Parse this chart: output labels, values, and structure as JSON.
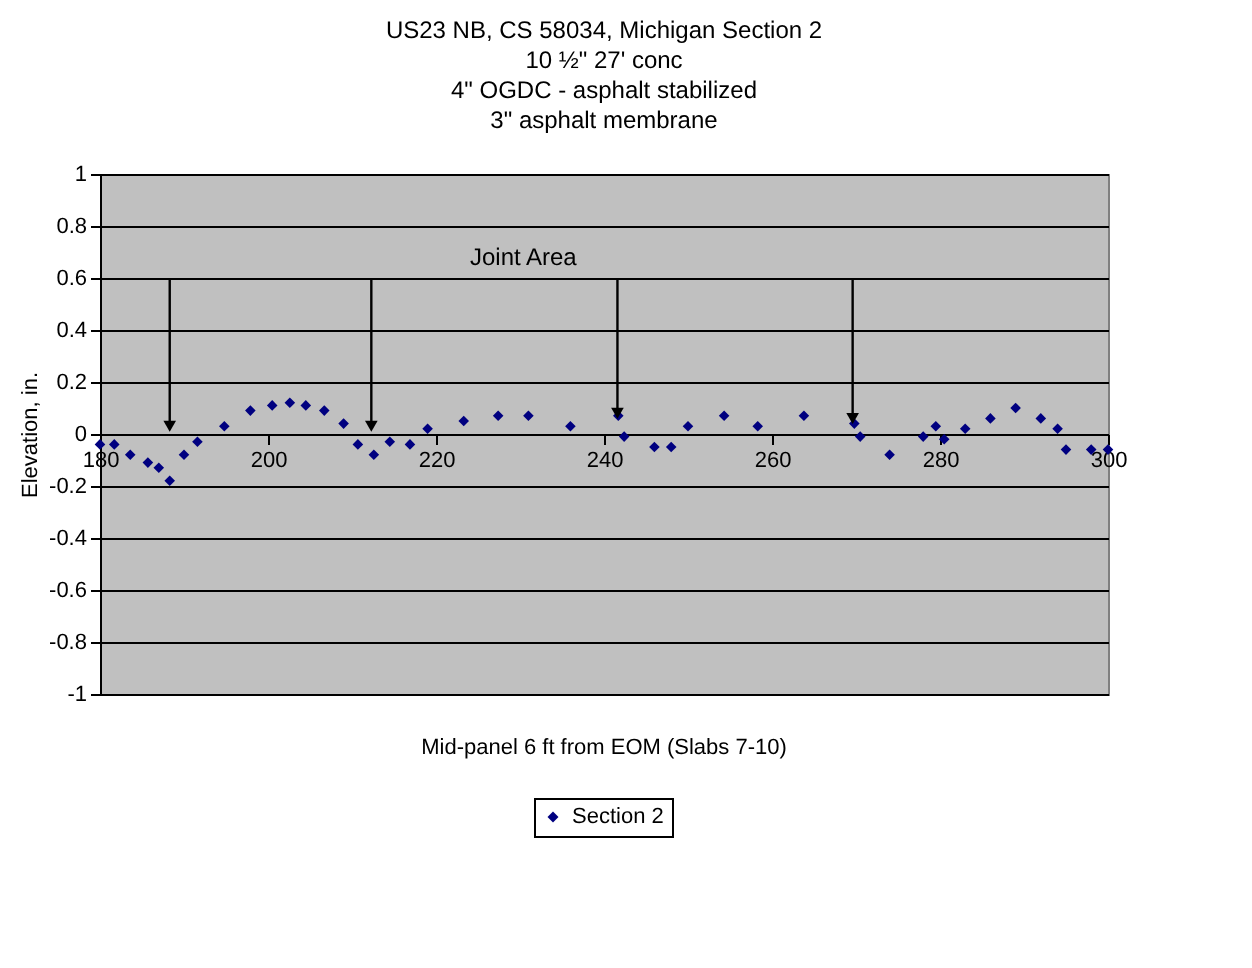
{
  "chart_data": {
    "type": "scatter",
    "title": "US23 NB, CS 58034, Michigan Section 2",
    "subtitle": "10 ½\" 27' conc\n4\" OGDC - asphalt stabilized\n3\" asphalt membrane",
    "xlabel": "Mid-panel 6 ft from EOM (Slabs 7-10)",
    "ylabel": "Elevation, in.",
    "annotations": [
      "Joint Area"
    ],
    "series": [
      {
        "name": "Section 2",
        "color": "#000080",
        "x": [
          180,
          181.7,
          183.6,
          185.7,
          187,
          188.3,
          190,
          191.6,
          194.8,
          197.9,
          200.5,
          202.6,
          204.5,
          206.7,
          209,
          210.7,
          212.6,
          214.5,
          216.9,
          219,
          223.3,
          227.4,
          231,
          236,
          241.7,
          242.4,
          246,
          248,
          250,
          254.3,
          258.3,
          263.8,
          269.8,
          270.5,
          274,
          278,
          279.5,
          280.5,
          283,
          286,
          289,
          292,
          294,
          295,
          298,
          300
        ],
        "values": [
          -0.04,
          -0.04,
          -0.08,
          -0.11,
          -0.13,
          -0.18,
          -0.08,
          -0.03,
          0.03,
          0.09,
          0.11,
          0.12,
          0.11,
          0.09,
          0.04,
          -0.04,
          -0.08,
          -0.03,
          -0.04,
          0.02,
          0.05,
          0.07,
          0.07,
          0.03,
          0.07,
          -0.01,
          -0.05,
          -0.05,
          0.03,
          0.07,
          0.03,
          0.07,
          0.04,
          -0.01,
          -0.08,
          -0.01,
          0.03,
          -0.02,
          0.02,
          0.06,
          0.1,
          0.06,
          0.02,
          -0.06,
          -0.06,
          -0.06
        ]
      }
    ],
    "xlim": [
      180,
      300
    ],
    "xticks": [
      180,
      200,
      220,
      240,
      260,
      280,
      300
    ],
    "ylim": [
      -1,
      1
    ],
    "yticks": [
      -1,
      -0.8,
      -0.6,
      -0.4,
      -0.2,
      0,
      0.2,
      0.4,
      0.6,
      0.8,
      1
    ],
    "grid": "y",
    "legend": "bottom",
    "marker": "diamond"
  }
}
